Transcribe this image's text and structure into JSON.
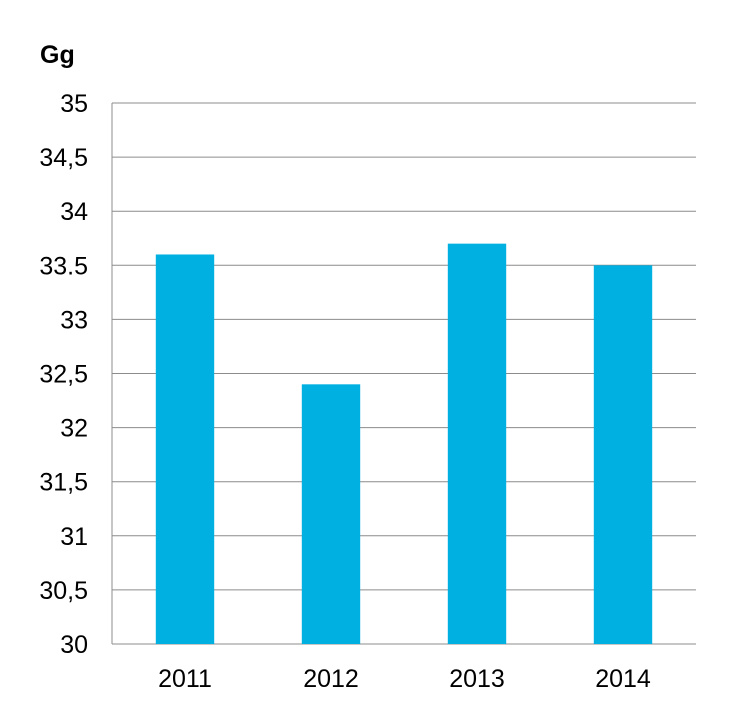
{
  "chart_data": {
    "type": "bar",
    "ylabel": "Gg",
    "categories": [
      "2011",
      "2012",
      "2013",
      "2014"
    ],
    "values": [
      33.6,
      32.4,
      33.7,
      33.5
    ],
    "ylim": [
      30,
      35
    ],
    "yticks": [
      30,
      30.5,
      31,
      31.5,
      32,
      32.5,
      33,
      33.5,
      34,
      34.5,
      35
    ],
    "ytick_labels": [
      "30",
      "30,5",
      "31",
      "31,5",
      "32",
      "32,5",
      "33",
      "33.5",
      "34",
      "34,5",
      "35"
    ],
    "grid": true,
    "legend": "none",
    "bar_color": "#00b0e0",
    "grid_color": "#8c8c8c"
  }
}
